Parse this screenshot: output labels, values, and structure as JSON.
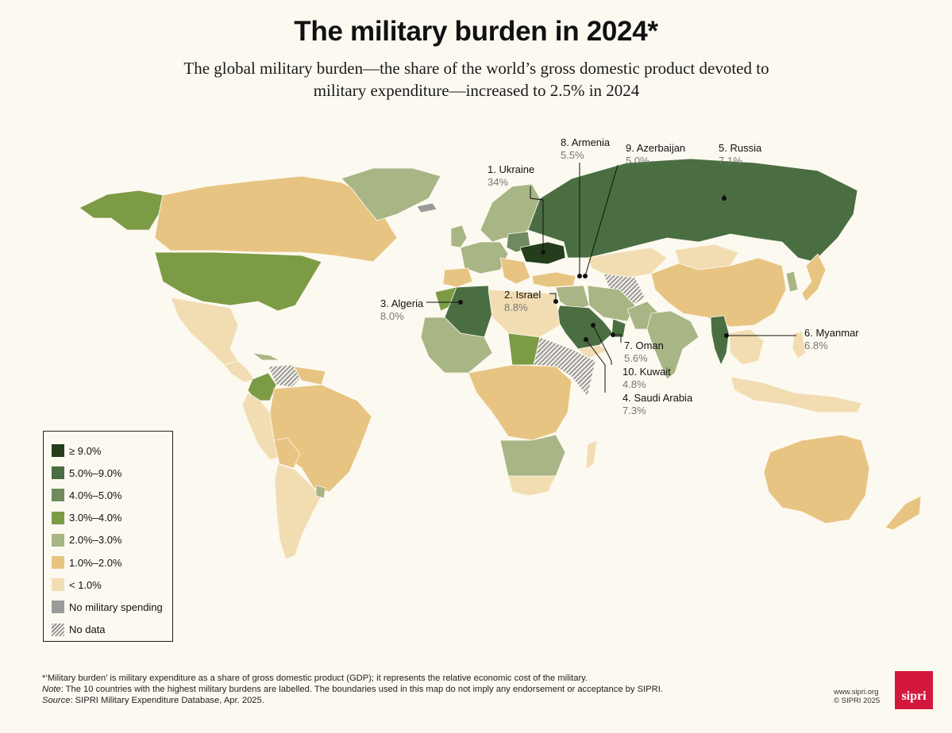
{
  "title": "The military burden in 2024*",
  "subtitle": "The global military burden—the share of the world’s gross domestic product devoted to military expenditure—increased to 2.5% in 2024",
  "colors": {
    "ge9": "#243d1b",
    "5to9": "#4a6e42",
    "4to5": "#6e8a5e",
    "3to4": "#7c9b45",
    "2to3": "#a8b584",
    "1to2": "#e8c482",
    "lt1": "#f2ddb3",
    "none": "#9a9a9a",
    "background": "#fcf9f0"
  },
  "legend": [
    {
      "label": "≥ 9.0%",
      "key": "ge9"
    },
    {
      "label": "5.0%–9.0%",
      "key": "5to9"
    },
    {
      "label": "4.0%–5.0%",
      "key": "4to5"
    },
    {
      "label": "3.0%–4.0%",
      "key": "3to4"
    },
    {
      "label": "2.0%–3.0%",
      "key": "2to3"
    },
    {
      "label": "1.0%–2.0%",
      "key": "1to2"
    },
    {
      "label": "< 1.0%",
      "key": "lt1"
    },
    {
      "label": "No military spending",
      "key": "none"
    },
    {
      "label": "No data",
      "key": "nodata"
    }
  ],
  "callouts": [
    {
      "name": "1. Ukraine",
      "value": "34%"
    },
    {
      "name": "2. Israel",
      "value": "8.8%"
    },
    {
      "name": "3. Algeria",
      "value": "8.0%"
    },
    {
      "name": "4. Saudi Arabia",
      "value": "7.3%"
    },
    {
      "name": "5. Russia",
      "value": "7.1%"
    },
    {
      "name": "6. Myanmar",
      "value": "6.8%"
    },
    {
      "name": "7. Oman",
      "value": "5.6%"
    },
    {
      "name": "8. Armenia",
      "value": "5.5%"
    },
    {
      "name": "9. Azerbaijan",
      "value": "5.0%"
    },
    {
      "name": "10. Kuwait",
      "value": "4.8%"
    }
  ],
  "footnote": {
    "line1": "*‘Military burden’ is military expenditure as a share of gross domestic product (GDP); it represents the relative economic cost of the military.",
    "note_label": "Note",
    "line2": ": The 10 countries with the highest military burdens are labelled. The boundaries used in this map do not imply any endorsement or acceptance by SIPRI.",
    "source_label": "Source",
    "line3": ": SIPRI Military Expenditure Database, Apr. 2025."
  },
  "brand": {
    "website": "www.sipri.org",
    "copyright": "© SIPRI 2025",
    "logo_text": "sipri"
  }
}
